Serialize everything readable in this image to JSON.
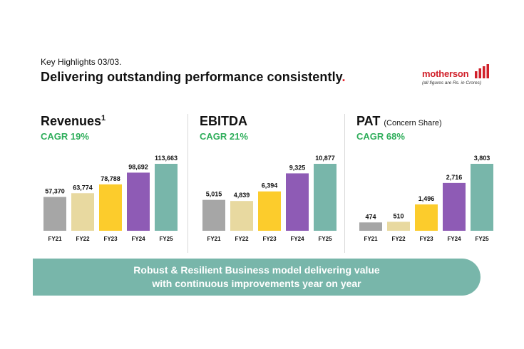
{
  "header": {
    "kicker": "Key Highlights 03/03",
    "kicker_dot": ".",
    "title": "Delivering outstanding performance consistently",
    "title_dot": "."
  },
  "logo": {
    "wordmark": "motherson",
    "note": "(all figures are Rs. in Crores)"
  },
  "colors": {
    "FY21": "#a6a6a6",
    "FY22": "#e8d9a0",
    "FY23": "#fccc2c",
    "FY24": "#8e5bb5",
    "FY25": "#78b6aa",
    "cagr": "#2fae5b",
    "brand": "#d1202a",
    "banner": "#78b6aa"
  },
  "panels": [
    {
      "title": "Revenues",
      "superscript": "1",
      "subtitle": "",
      "cagr": "CAGR 19%"
    },
    {
      "title": "EBITDA",
      "superscript": "",
      "subtitle": "",
      "cagr": "CAGR 21%"
    },
    {
      "title": "PAT",
      "superscript": "",
      "subtitle": "(Concern Share)",
      "cagr": "CAGR 68%"
    }
  ],
  "chart_data": [
    {
      "type": "bar",
      "title": "Revenues",
      "categories": [
        "FY21",
        "FY22",
        "FY23",
        "FY24",
        "FY25"
      ],
      "values": [
        57370,
        63774,
        78788,
        98692,
        113663
      ],
      "labels": [
        "57,370",
        "63,774",
        "78,788",
        "98,692",
        "113,663"
      ]
    },
    {
      "type": "bar",
      "title": "EBITDA",
      "categories": [
        "FY21",
        "FY22",
        "FY23",
        "FY24",
        "FY25"
      ],
      "values": [
        5015,
        4839,
        6394,
        9325,
        10877
      ],
      "labels": [
        "5,015",
        "4,839",
        "6,394",
        "9,325",
        "10,877"
      ]
    },
    {
      "type": "bar",
      "title": "PAT",
      "categories": [
        "FY21",
        "FY22",
        "FY23",
        "FY24",
        "FY25"
      ],
      "values": [
        474,
        510,
        1496,
        2716,
        3803
      ],
      "labels": [
        "474",
        "510",
        "1,496",
        "2,716",
        "3,803"
      ]
    }
  ],
  "banner": {
    "line1": "Robust & Resilient Business model delivering value",
    "line2": "with continuous improvements year on year"
  }
}
